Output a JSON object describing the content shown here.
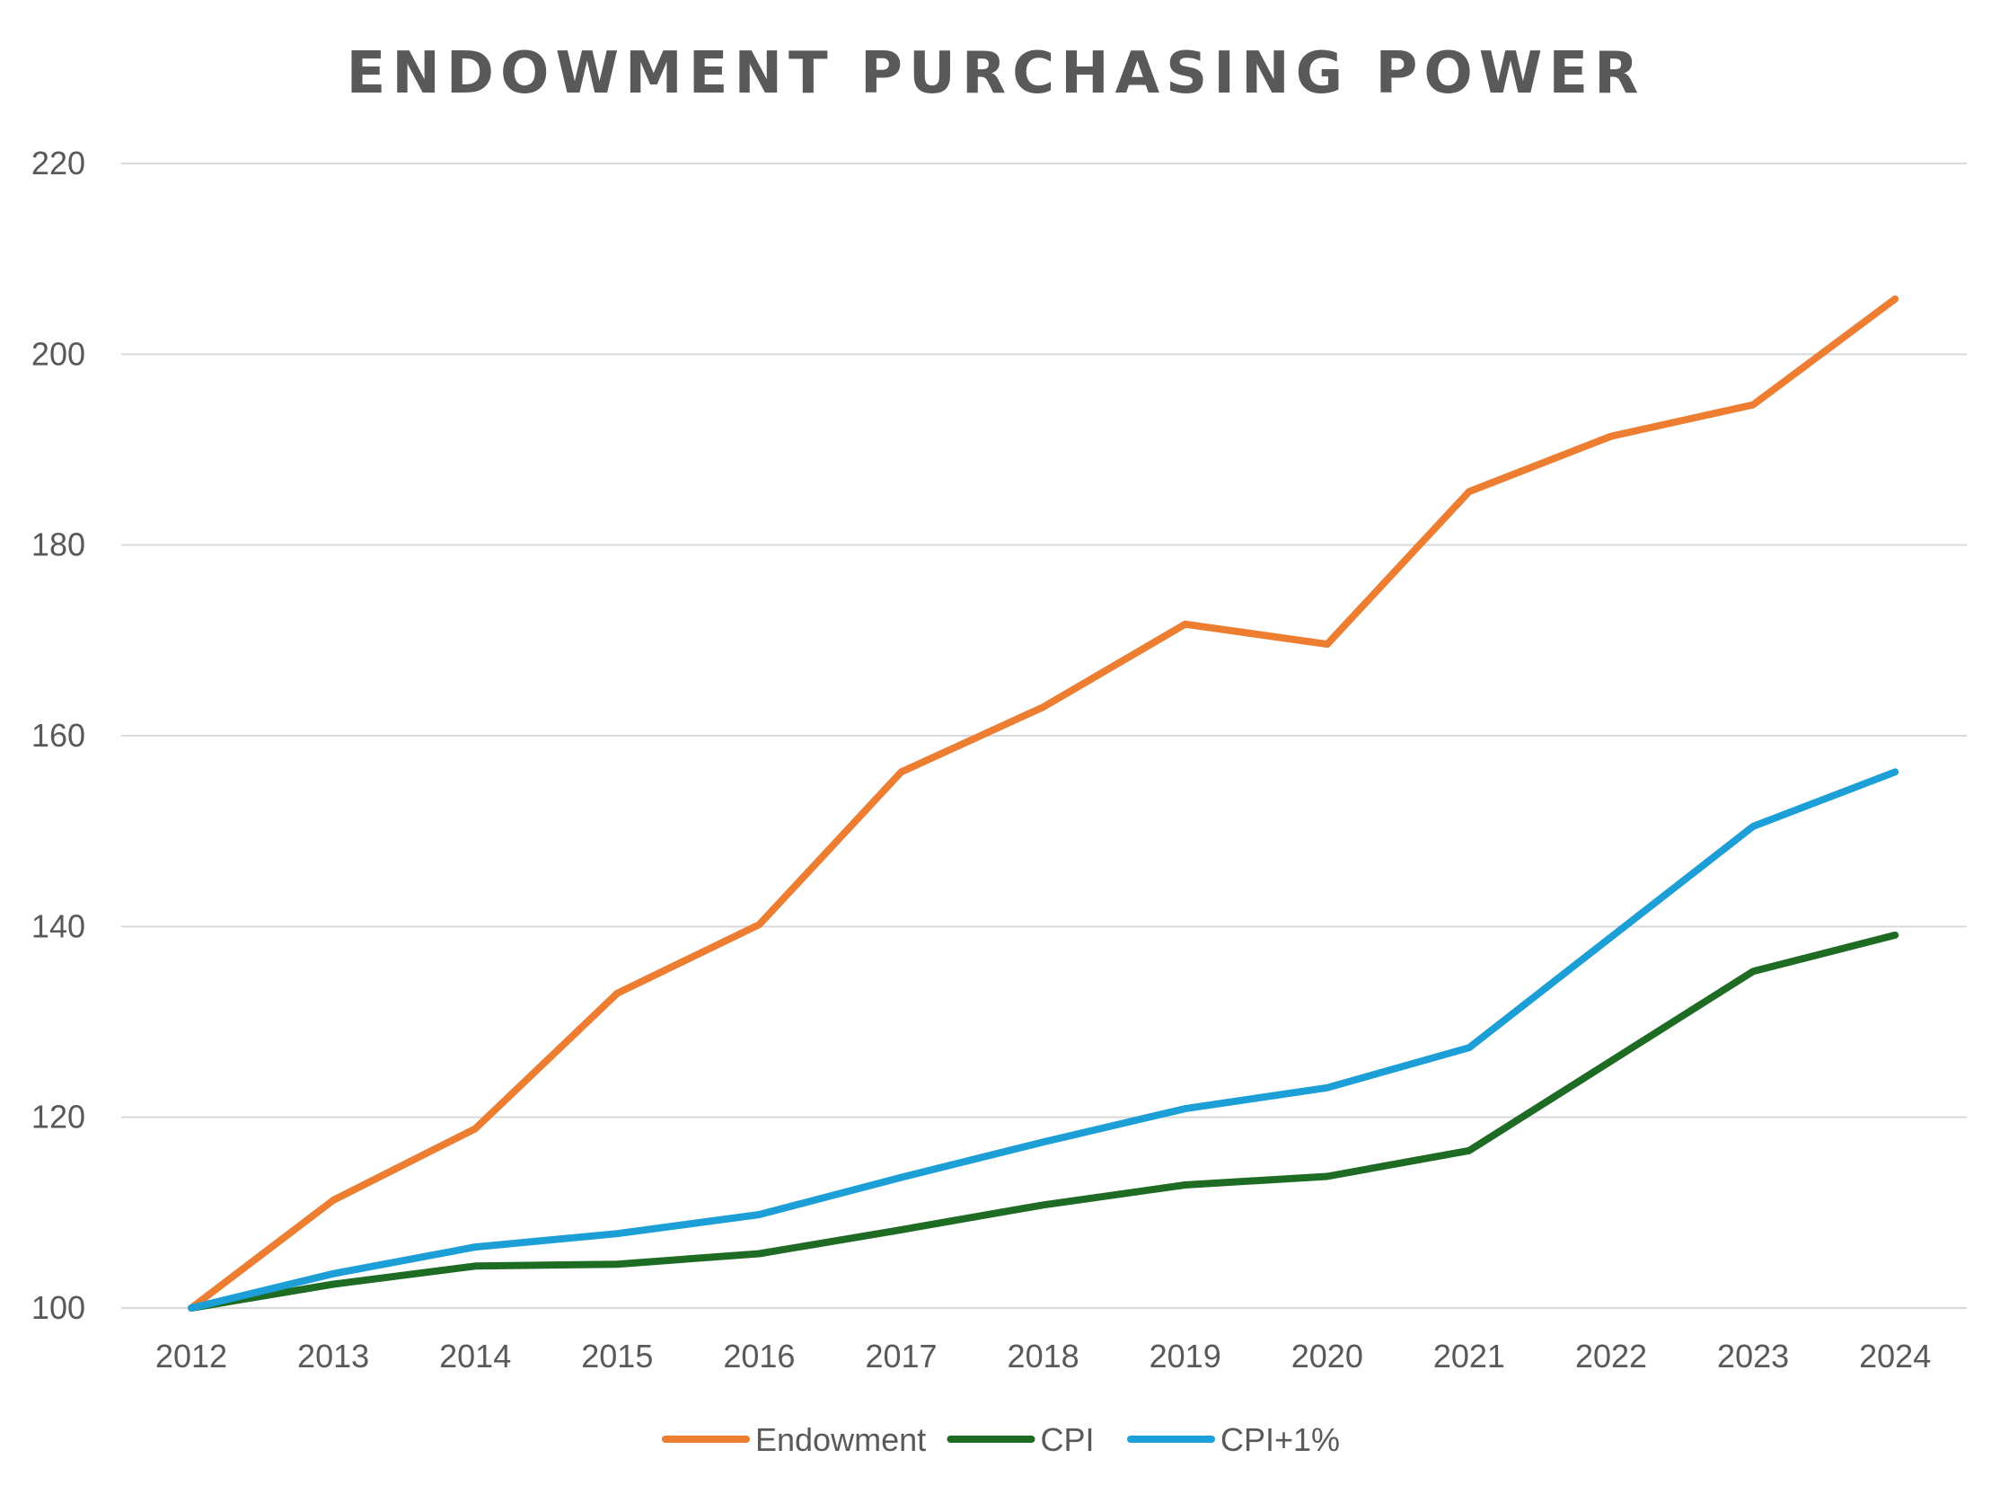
{
  "chart_data": {
    "type": "line",
    "title": "ENDOWMENT PURCHASING POWER",
    "xlabel": "",
    "ylabel": "",
    "categories": [
      "2012",
      "2013",
      "2014",
      "2015",
      "2016",
      "2017",
      "2018",
      "2019",
      "2020",
      "2021",
      "2022",
      "2023",
      "2024"
    ],
    "ylim": [
      100,
      220
    ],
    "yticks": [
      100,
      120,
      140,
      160,
      180,
      200,
      220
    ],
    "grid": true,
    "legend": "bottom",
    "series": [
      {
        "name": "Endowment",
        "color": "#ED7D31",
        "values": [
          100,
          111.3,
          118.8,
          133.0,
          140.2,
          156.2,
          163.0,
          171.7,
          169.6,
          185.6,
          191.4,
          194.7,
          205.8
        ]
      },
      {
        "name": "CPI",
        "color": "#1E6B24",
        "values": [
          100,
          102.5,
          104.4,
          104.6,
          105.7,
          108.2,
          110.8,
          112.9,
          113.8,
          116.5,
          125.9,
          135.3,
          139.1
        ]
      },
      {
        "name": "CPI+1%",
        "color": "#1B9FD6",
        "values": [
          100,
          103.6,
          106.4,
          107.8,
          109.8,
          113.7,
          117.4,
          120.9,
          123.1,
          127.3,
          138.9,
          150.5,
          156.2
        ]
      }
    ]
  }
}
